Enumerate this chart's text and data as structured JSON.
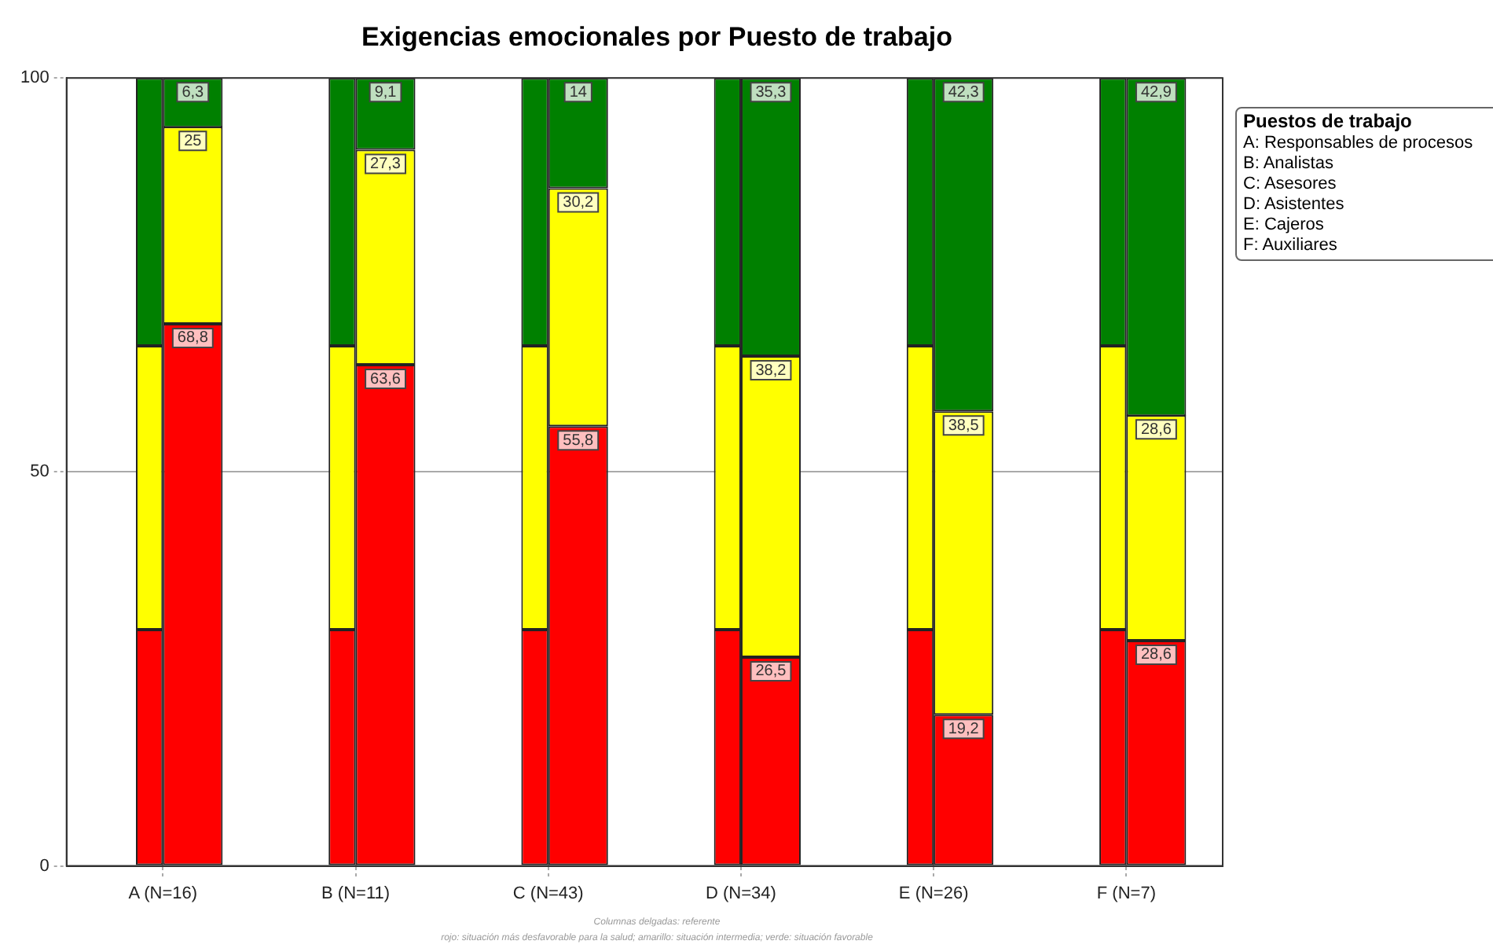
{
  "chart_data": {
    "type": "bar",
    "title": "Exigencias emocionales por Puesto de trabajo",
    "categories": [
      "A (N=16)",
      "B (N=11)",
      "C (N=43)",
      "D (N=34)",
      "E (N=26)",
      "F (N=7)"
    ],
    "series": [
      {
        "color": "#ff0000",
        "values": [
          30,
          30,
          30,
          30,
          30,
          30
        ],
        "base": [
          0,
          0,
          0,
          0,
          0,
          0
        ]
      },
      {
        "color": "#ffff00",
        "values": [
          36,
          36,
          36,
          36,
          36,
          36
        ],
        "base": [
          30,
          30,
          30,
          30,
          30,
          30
        ]
      },
      {
        "color": "#008000",
        "values": [
          34,
          34,
          34,
          34,
          34,
          34
        ],
        "base": [
          66,
          66,
          66,
          66,
          66,
          66
        ]
      },
      {
        "color": "#ff0000",
        "values": [
          68.8,
          63.6,
          55.8,
          26.5,
          19.2,
          28.6
        ],
        "base": [
          0,
          0,
          0,
          0,
          0,
          0
        ],
        "value_labels": [
          "68,8",
          "63,6",
          "55,8",
          "26,5",
          "19,2",
          "28,6"
        ]
      },
      {
        "color": "#ffff00",
        "values": [
          25,
          27.3,
          30.2,
          38.2,
          38.5,
          28.6
        ],
        "base": [
          68.8,
          63.6,
          55.8,
          26.5,
          19.2,
          28.6
        ],
        "value_labels": [
          "25",
          "27,3",
          "30,2",
          "38,2",
          "38,5",
          "28,6"
        ]
      },
      {
        "color": "#008000",
        "values": [
          6.3,
          9.1,
          14,
          35.3,
          42.3,
          42.9
        ],
        "base": [
          93.7,
          90.9,
          86,
          64.7,
          57.7,
          57.1
        ],
        "value_labels": [
          "6,3",
          "9,1",
          "14",
          "35,3",
          "42,3",
          "42,9"
        ]
      }
    ],
    "ylim": [
      0,
      100
    ],
    "yticks": [
      0,
      50,
      100
    ],
    "grid": true,
    "legend": false,
    "legend_title": "Puestos de trabajo",
    "annotations": [
      "A: Responsables de procesos",
      "B: Analistas",
      "C: Asesores",
      "D: Asistentes",
      "E: Cajeros",
      "F: Auxiliares",
      "Columnas delgadas: referente",
      "rojo: situación más desfavorable para la salud; amarillo: situación intermedia; verde: situación favorable"
    ]
  }
}
